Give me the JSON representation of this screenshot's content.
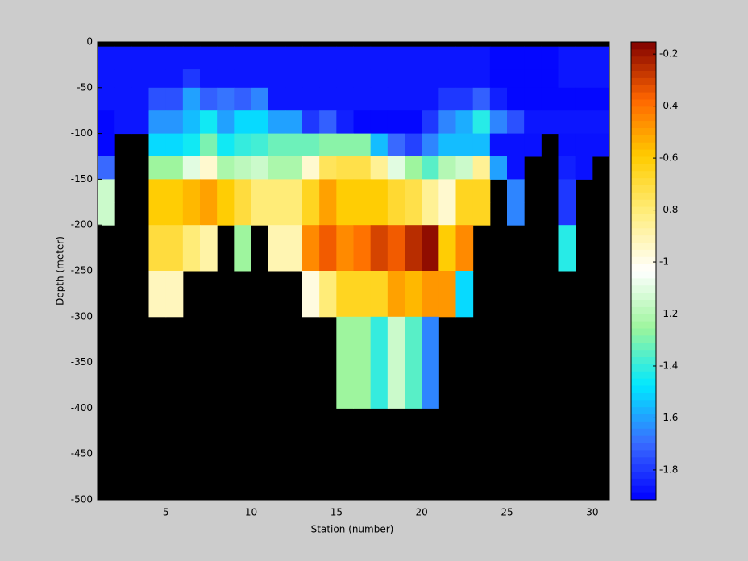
{
  "chart_data": {
    "type": "heatmap",
    "xlabel": "Station (number)",
    "ylabel": "Depth (meter)",
    "x": [
      1,
      2,
      3,
      4,
      5,
      6,
      7,
      8,
      9,
      10,
      11,
      12,
      13,
      14,
      15,
      16,
      17,
      18,
      19,
      20,
      21,
      22,
      23,
      24,
      25,
      26,
      27,
      28,
      29,
      30,
      31
    ],
    "y": [
      0,
      -5,
      -30,
      -50,
      -75,
      -100,
      -125,
      -150,
      -175,
      -200,
      -250,
      -300,
      -400,
      -500
    ],
    "values": [
      [
        null,
        null,
        null,
        null,
        null,
        null,
        null,
        null,
        null,
        null,
        null,
        null,
        null,
        null,
        null,
        null,
        null,
        null,
        null,
        null,
        null,
        null,
        null,
        null,
        null,
        null,
        null,
        null,
        null,
        null
      ],
      [
        -1.87,
        -1.87,
        -1.87,
        -1.87,
        -1.87,
        -1.87,
        -1.87,
        -1.87,
        -1.87,
        -1.87,
        -1.87,
        -1.87,
        -1.87,
        -1.87,
        -1.87,
        -1.87,
        -1.87,
        -1.87,
        -1.87,
        -1.87,
        -1.87,
        -1.87,
        -1.87,
        -1.9,
        -1.9,
        -1.9,
        -1.9,
        -1.87,
        -1.87,
        -1.87
      ],
      [
        -1.87,
        -1.87,
        -1.87,
        -1.87,
        -1.87,
        -1.8,
        -1.87,
        -1.87,
        -1.87,
        -1.87,
        -1.87,
        -1.87,
        -1.87,
        -1.87,
        -1.87,
        -1.87,
        -1.87,
        -1.87,
        -1.87,
        -1.87,
        -1.87,
        -1.87,
        -1.87,
        -1.9,
        -1.9,
        -1.9,
        -1.9,
        -1.87,
        -1.87,
        -1.87
      ],
      [
        -1.87,
        -1.87,
        -1.87,
        -1.75,
        -1.75,
        -1.6,
        -1.72,
        -1.68,
        -1.72,
        -1.65,
        -1.87,
        -1.87,
        -1.87,
        -1.87,
        -1.87,
        -1.87,
        -1.87,
        -1.87,
        -1.87,
        -1.87,
        -1.8,
        -1.8,
        -1.72,
        -1.85,
        -1.9,
        -1.9,
        -1.9,
        -1.9,
        -1.9,
        -1.9
      ],
      [
        -1.9,
        -1.87,
        -1.87,
        -1.62,
        -1.62,
        -1.55,
        -1.45,
        -1.6,
        -1.5,
        -1.5,
        -1.6,
        -1.6,
        -1.8,
        -1.72,
        -1.85,
        -1.9,
        -1.9,
        -1.9,
        -1.9,
        -1.8,
        -1.65,
        -1.58,
        -1.42,
        -1.65,
        -1.75,
        -1.87,
        -1.87,
        -1.87,
        -1.87,
        -1.87
      ],
      [
        -1.9,
        null,
        null,
        -1.5,
        -1.5,
        -1.45,
        -1.3,
        -1.45,
        -1.4,
        -1.38,
        -1.32,
        -1.32,
        -1.32,
        -1.28,
        -1.28,
        -1.28,
        -1.55,
        -1.7,
        -1.78,
        -1.65,
        -1.55,
        -1.55,
        -1.55,
        -1.88,
        -1.88,
        -1.88,
        null,
        -1.88,
        -1.88,
        -1.88
      ],
      [
        -1.7,
        null,
        null,
        -1.25,
        -1.25,
        -1.1,
        -0.95,
        -1.22,
        -1.18,
        -1.15,
        -1.22,
        -1.22,
        -0.95,
        -0.75,
        -0.72,
        -0.72,
        -0.85,
        -1.1,
        -1.25,
        -1.35,
        -1.2,
        -1.15,
        -0.85,
        -1.6,
        -1.88,
        null,
        null,
        -1.85,
        -1.88,
        null
      ],
      [
        -1.15,
        null,
        null,
        -0.6,
        -0.6,
        -0.55,
        -0.5,
        -0.6,
        -0.7,
        -0.8,
        -0.8,
        -0.8,
        -0.65,
        -0.5,
        -0.6,
        -0.6,
        -0.6,
        -0.68,
        -0.72,
        -0.85,
        -0.95,
        -0.65,
        -0.65,
        null,
        -1.65,
        null,
        null,
        -1.8,
        null,
        null
      ],
      [
        -1.15,
        null,
        null,
        -0.6,
        -0.6,
        -0.55,
        -0.5,
        -0.6,
        -0.7,
        -0.8,
        -0.8,
        -0.8,
        -0.65,
        -0.5,
        -0.6,
        -0.6,
        -0.6,
        -0.68,
        -0.72,
        -0.85,
        -0.95,
        -0.65,
        -0.65,
        null,
        -1.65,
        null,
        null,
        -1.8,
        null,
        null
      ],
      [
        null,
        null,
        null,
        -0.7,
        -0.7,
        -0.8,
        -0.88,
        null,
        -1.25,
        null,
        -0.9,
        -0.9,
        -0.45,
        -0.35,
        -0.45,
        -0.4,
        -0.3,
        -0.35,
        -0.25,
        -0.18,
        -0.6,
        -0.45,
        null,
        null,
        null,
        null,
        null,
        -1.42,
        null,
        null
      ],
      [
        null,
        null,
        null,
        -0.92,
        -0.92,
        null,
        null,
        null,
        null,
        null,
        null,
        null,
        -0.98,
        -0.8,
        -0.65,
        -0.65,
        -0.65,
        -0.5,
        -0.55,
        -0.48,
        -0.48,
        -1.5,
        null,
        null,
        null,
        null,
        null,
        null,
        null,
        null
      ],
      [
        null,
        null,
        null,
        null,
        null,
        null,
        null,
        null,
        null,
        null,
        null,
        null,
        null,
        null,
        -1.25,
        -1.25,
        -1.4,
        -1.15,
        -1.35,
        -1.65,
        null,
        null,
        null,
        null,
        null,
        null,
        null,
        null,
        null,
        null
      ],
      [
        null,
        null,
        null,
        null,
        null,
        null,
        null,
        null,
        null,
        null,
        null,
        null,
        null,
        null,
        null,
        null,
        null,
        null,
        null,
        null,
        null,
        null,
        null,
        null,
        null,
        null,
        null,
        null,
        null,
        null
      ]
    ],
    "xlim": [
      1,
      31
    ],
    "xticks": [
      5,
      10,
      15,
      20,
      25,
      30
    ],
    "ylim": [
      -500,
      0
    ],
    "yticks": [
      0,
      -50,
      -100,
      -150,
      -200,
      -250,
      -300,
      -350,
      -400,
      -450,
      -500
    ],
    "clim": [
      -1.915,
      -0.153
    ],
    "cticks": [
      -0.2,
      -0.4,
      -0.6,
      -0.8,
      -1,
      -1.2,
      -1.4,
      -1.6,
      -1.8
    ],
    "colormap": [
      "#0000ff",
      "#3a6cff",
      "#00e8ff",
      "#9cf59c",
      "#ffffff",
      "#ffee80",
      "#ffcc00",
      "#ff6600",
      "#800000"
    ],
    "nan_color": "#000000"
  }
}
